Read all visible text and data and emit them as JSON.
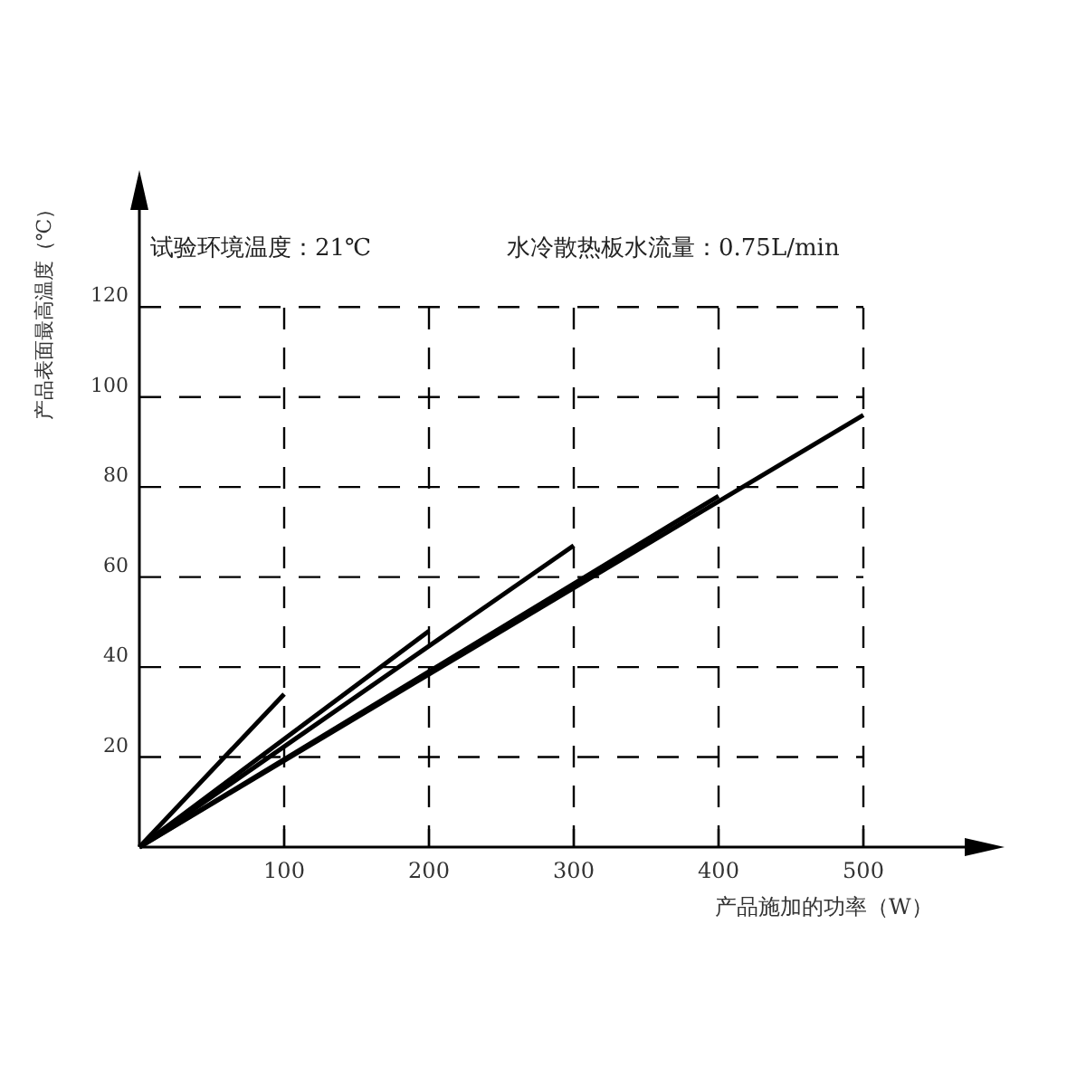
{
  "chart_data": {
    "type": "line",
    "xlabel": "产品施加的功率（W）",
    "ylabel": "产品表面最高温度（℃）",
    "annotations": [
      "试验环境温度：21℃",
      "水冷散热板水流量：0.75L/min"
    ],
    "xlim": [
      0,
      590
    ],
    "ylim": [
      0,
      148
    ],
    "xticks": [
      100,
      200,
      300,
      400,
      500
    ],
    "yticks": [
      20,
      40,
      60,
      80,
      100,
      120
    ],
    "grid": true,
    "line_style": "solid",
    "marker": "none",
    "series": [
      {
        "color": "#000000",
        "x": [
          0,
          100
        ],
        "values": [
          0,
          34
        ]
      },
      {
        "color": "#000000",
        "x": [
          0,
          200
        ],
        "values": [
          0,
          48
        ]
      },
      {
        "color": "#000000",
        "x": [
          0,
          300
        ],
        "values": [
          0,
          67
        ]
      },
      {
        "color": "#000000",
        "x": [
          0,
          400
        ],
        "values": [
          0,
          78
        ]
      },
      {
        "color": "#000000",
        "x": [
          0,
          500
        ],
        "values": [
          0,
          96
        ]
      }
    ]
  }
}
